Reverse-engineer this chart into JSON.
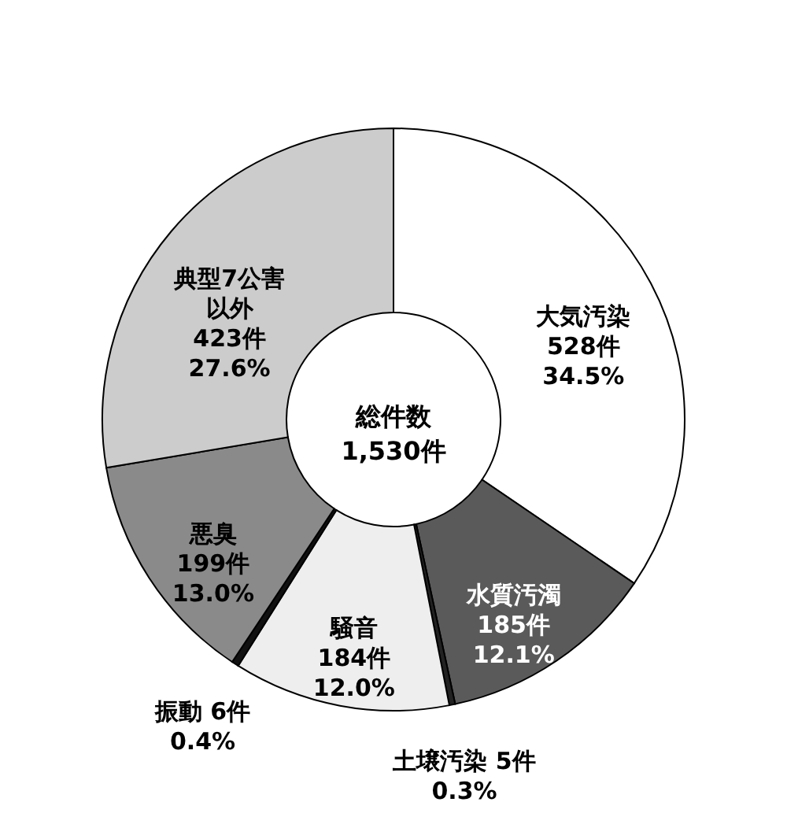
{
  "chart_data": {
    "type": "donut",
    "categories": [
      "大気汚染",
      "水質汚濁",
      "土壌汚染",
      "騒音",
      "振動",
      "悪臭",
      "典型7公害以外"
    ],
    "values": [
      528,
      185,
      5,
      184,
      6,
      199,
      423
    ],
    "colors": [
      "#ffffff",
      "#5a5a5a",
      "#222222",
      "#eeeeee",
      "#111111",
      "#8a8a8a",
      "#cccccc"
    ],
    "value_labels": [
      "528件 34.5%",
      "185件 12.1%",
      "5件 0.3%",
      "184件 12.0%",
      "6件 0.4%",
      "199件 13.0%",
      "423件 27.6%"
    ],
    "annotations": [
      "総件数 1,530件"
    ],
    "legend": false
  }
}
